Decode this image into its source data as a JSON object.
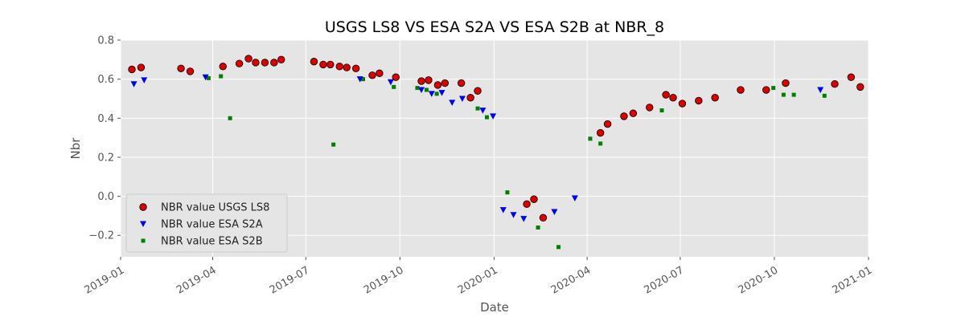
{
  "chart_data": {
    "type": "scatter",
    "title": "USGS LS8 VS ESA S2A VS ESA S2B at NBR_8",
    "xlabel": "Date",
    "ylabel": "Nbr",
    "xlim": [
      "2019-01-01",
      "2021-01-01"
    ],
    "ylim": [
      -0.31,
      0.8
    ],
    "x_ticks": [
      "2019-01",
      "2019-04",
      "2019-07",
      "2019-10",
      "2020-01",
      "2020-04",
      "2020-07",
      "2020-10",
      "2021-01"
    ],
    "y_ticks": [
      "−0.2",
      "0.0",
      "0.2",
      "0.4",
      "0.6",
      "0.8"
    ],
    "y_tick_values": [
      -0.2,
      0.0,
      0.2,
      0.4,
      0.6,
      0.8
    ],
    "grid": true,
    "legend_position": "lower-left",
    "series": [
      {
        "name": "NBR value USGS LS8",
        "marker": "circle",
        "color": "#dd0000",
        "edge_color": "#000000",
        "points": [
          {
            "x": "2019-01-12",
            "y": 0.65
          },
          {
            "x": "2019-01-21",
            "y": 0.66
          },
          {
            "x": "2019-03-01",
            "y": 0.655
          },
          {
            "x": "2019-03-10",
            "y": 0.64
          },
          {
            "x": "2019-04-11",
            "y": 0.665
          },
          {
            "x": "2019-04-27",
            "y": 0.68
          },
          {
            "x": "2019-05-06",
            "y": 0.705
          },
          {
            "x": "2019-05-13",
            "y": 0.685
          },
          {
            "x": "2019-05-22",
            "y": 0.685
          },
          {
            "x": "2019-05-31",
            "y": 0.685
          },
          {
            "x": "2019-06-07",
            "y": 0.7
          },
          {
            "x": "2019-07-09",
            "y": 0.69
          },
          {
            "x": "2019-07-18",
            "y": 0.675
          },
          {
            "x": "2019-07-25",
            "y": 0.675
          },
          {
            "x": "2019-08-03",
            "y": 0.665
          },
          {
            "x": "2019-08-10",
            "y": 0.66
          },
          {
            "x": "2019-08-19",
            "y": 0.655
          },
          {
            "x": "2019-09-04",
            "y": 0.62
          },
          {
            "x": "2019-09-11",
            "y": 0.63
          },
          {
            "x": "2019-09-27",
            "y": 0.61
          },
          {
            "x": "2019-10-22",
            "y": 0.59
          },
          {
            "x": "2019-10-29",
            "y": 0.595
          },
          {
            "x": "2019-11-07",
            "y": 0.57
          },
          {
            "x": "2019-11-14",
            "y": 0.58
          },
          {
            "x": "2019-11-30",
            "y": 0.58
          },
          {
            "x": "2019-12-09",
            "y": 0.505
          },
          {
            "x": "2019-12-16",
            "y": 0.54
          },
          {
            "x": "2020-02-02",
            "y": -0.04
          },
          {
            "x": "2020-02-09",
            "y": -0.015
          },
          {
            "x": "2020-02-18",
            "y": -0.11
          },
          {
            "x": "2020-04-14",
            "y": 0.325
          },
          {
            "x": "2020-04-21",
            "y": 0.37
          },
          {
            "x": "2020-05-07",
            "y": 0.41
          },
          {
            "x": "2020-05-16",
            "y": 0.425
          },
          {
            "x": "2020-06-01",
            "y": 0.455
          },
          {
            "x": "2020-06-17",
            "y": 0.52
          },
          {
            "x": "2020-06-24",
            "y": 0.505
          },
          {
            "x": "2020-07-03",
            "y": 0.475
          },
          {
            "x": "2020-07-19",
            "y": 0.49
          },
          {
            "x": "2020-08-04",
            "y": 0.505
          },
          {
            "x": "2020-08-29",
            "y": 0.545
          },
          {
            "x": "2020-09-23",
            "y": 0.545
          },
          {
            "x": "2020-10-12",
            "y": 0.58
          },
          {
            "x": "2020-11-29",
            "y": 0.575
          },
          {
            "x": "2020-12-15",
            "y": 0.61
          },
          {
            "x": "2020-12-24",
            "y": 0.56
          }
        ]
      },
      {
        "name": "NBR value ESA S2A",
        "marker": "triangle-down",
        "color": "#0000ee",
        "points": [
          {
            "x": "2019-01-14",
            "y": 0.575
          },
          {
            "x": "2019-01-24",
            "y": 0.595
          },
          {
            "x": "2019-03-25",
            "y": 0.61
          },
          {
            "x": "2019-08-23",
            "y": 0.6
          },
          {
            "x": "2019-09-22",
            "y": 0.585
          },
          {
            "x": "2019-10-22",
            "y": 0.545
          },
          {
            "x": "2019-11-01",
            "y": 0.525
          },
          {
            "x": "2019-11-11",
            "y": 0.53
          },
          {
            "x": "2019-11-21",
            "y": 0.48
          },
          {
            "x": "2019-12-01",
            "y": 0.5
          },
          {
            "x": "2019-12-21",
            "y": 0.44
          },
          {
            "x": "2019-12-31",
            "y": 0.41
          },
          {
            "x": "2020-01-10",
            "y": -0.07
          },
          {
            "x": "2020-01-20",
            "y": -0.095
          },
          {
            "x": "2020-01-30",
            "y": -0.115
          },
          {
            "x": "2020-02-29",
            "y": -0.08
          },
          {
            "x": "2020-03-20",
            "y": -0.01
          },
          {
            "x": "2020-11-15",
            "y": 0.545
          }
        ]
      },
      {
        "name": "NBR value ESA S2B",
        "marker": "square",
        "color": "#008000",
        "points": [
          {
            "x": "2019-03-28",
            "y": 0.605
          },
          {
            "x": "2019-04-09",
            "y": 0.615
          },
          {
            "x": "2019-04-18",
            "y": 0.4
          },
          {
            "x": "2019-07-28",
            "y": 0.265
          },
          {
            "x": "2019-08-26",
            "y": 0.6
          },
          {
            "x": "2019-09-25",
            "y": 0.56
          },
          {
            "x": "2019-10-18",
            "y": 0.555
          },
          {
            "x": "2019-10-27",
            "y": 0.545
          },
          {
            "x": "2019-11-06",
            "y": 0.525
          },
          {
            "x": "2019-12-16",
            "y": 0.45
          },
          {
            "x": "2019-12-25",
            "y": 0.405
          },
          {
            "x": "2020-01-14",
            "y": 0.02
          },
          {
            "x": "2020-02-13",
            "y": -0.16
          },
          {
            "x": "2020-03-04",
            "y": -0.26
          },
          {
            "x": "2020-04-04",
            "y": 0.295
          },
          {
            "x": "2020-04-14",
            "y": 0.27
          },
          {
            "x": "2020-06-13",
            "y": 0.44
          },
          {
            "x": "2020-09-30",
            "y": 0.555
          },
          {
            "x": "2020-10-10",
            "y": 0.52
          },
          {
            "x": "2020-10-20",
            "y": 0.52
          },
          {
            "x": "2020-11-19",
            "y": 0.515
          }
        ]
      }
    ]
  }
}
